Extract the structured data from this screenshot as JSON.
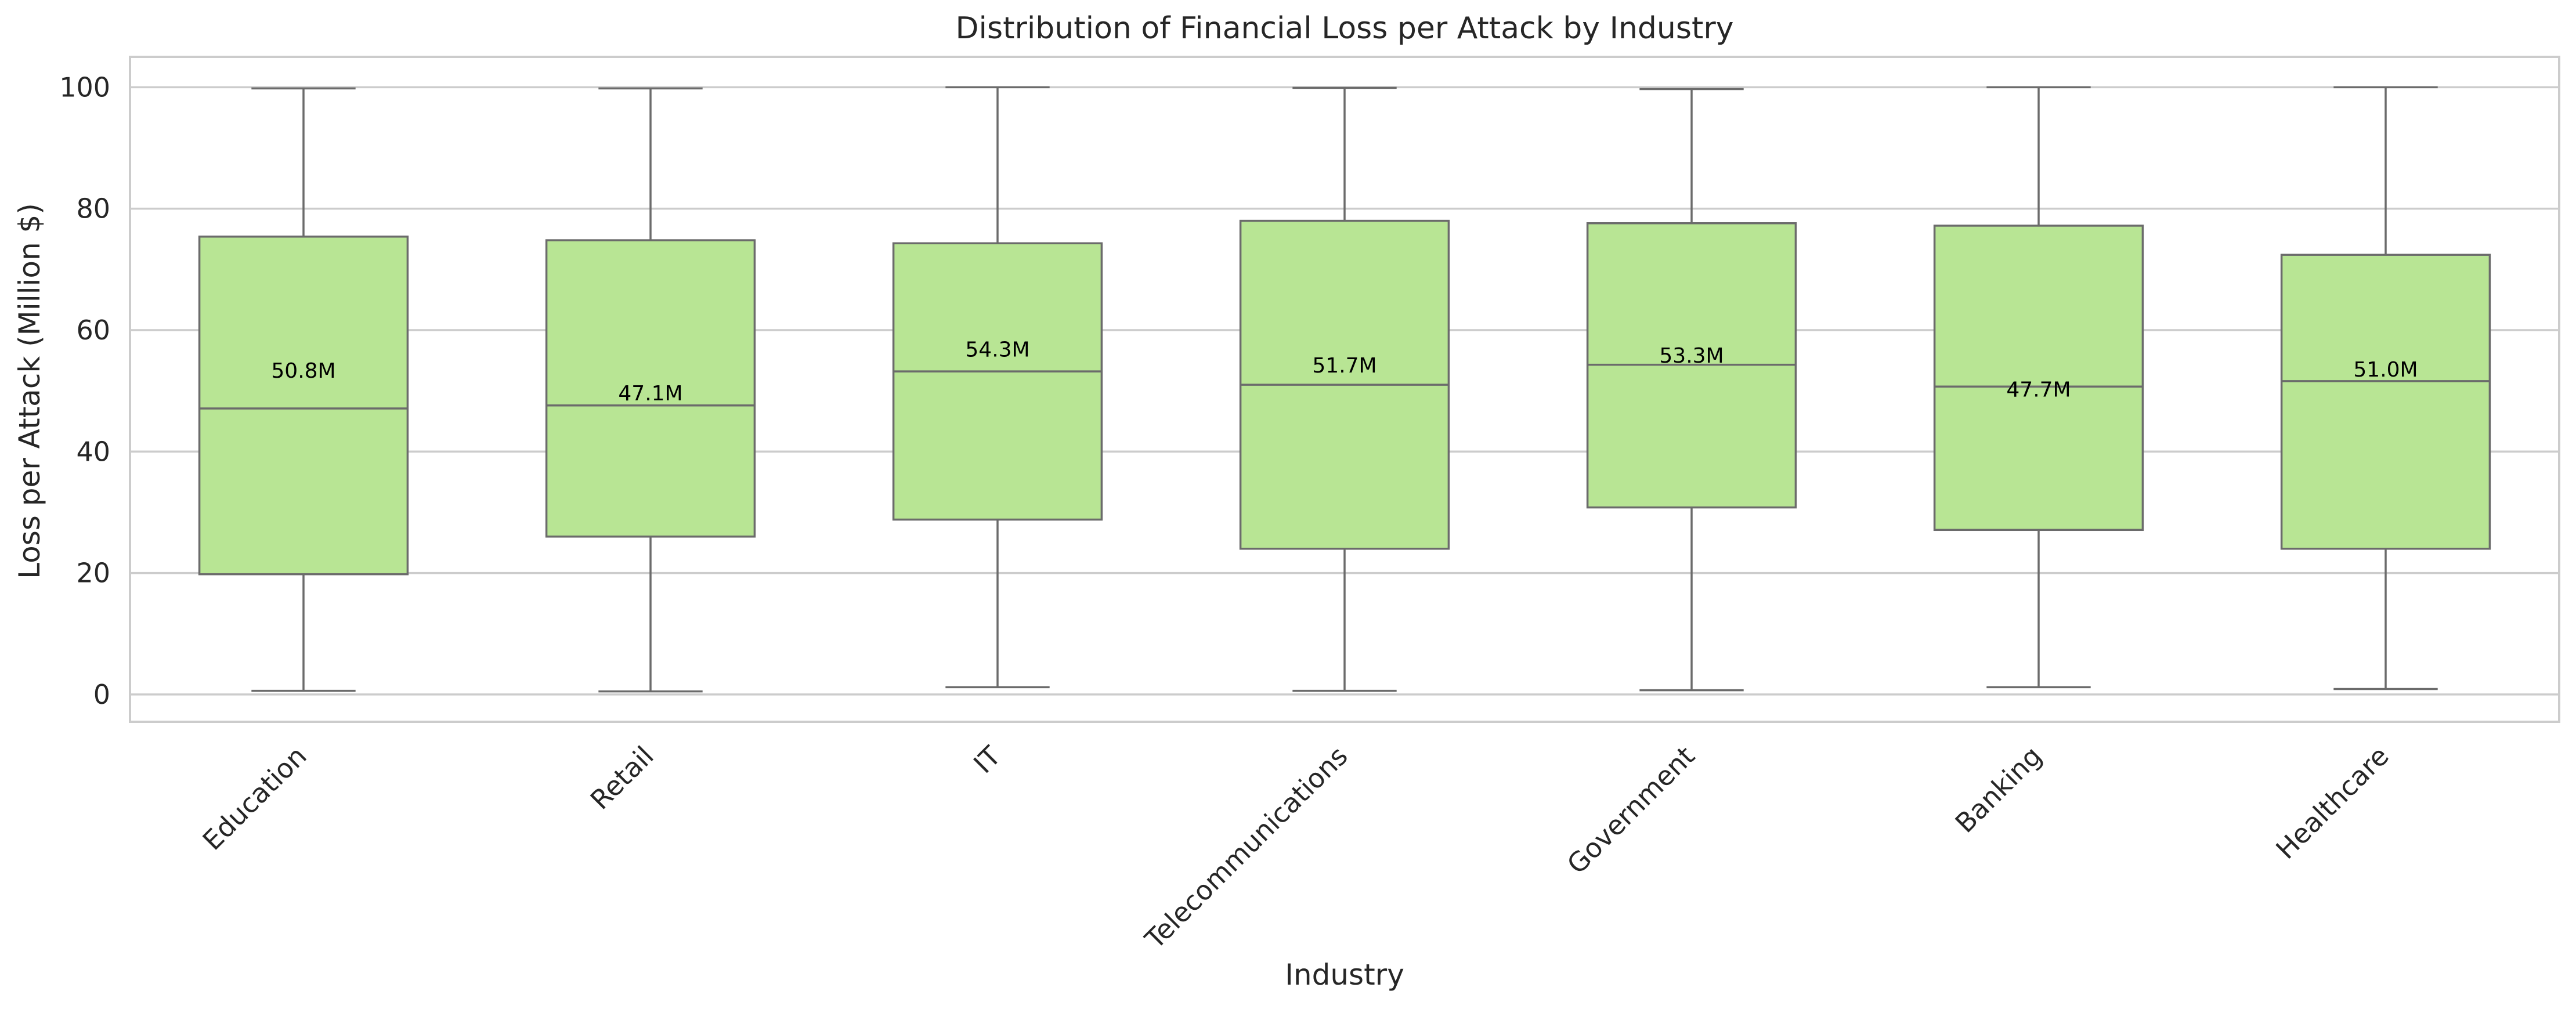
{
  "chart_data": {
    "type": "box",
    "title": "Distribution of Financial Loss per Attack by Industry",
    "xlabel": "Industry",
    "ylabel": "Loss per Attack (Million $)",
    "ylim": [
      -4.5,
      105
    ],
    "yticks": [
      0,
      20,
      40,
      60,
      80,
      100
    ],
    "grid": true,
    "categories": [
      "Education",
      "Retail",
      "IT",
      "Telecommunications",
      "Government",
      "Banking",
      "Healthcare"
    ],
    "boxes": [
      {
        "category": "Education",
        "min": 0.6,
        "q1": 19.8,
        "median": 47.1,
        "q3": 75.4,
        "max": 99.8,
        "mean": 50.8,
        "mean_label": "50.8M"
      },
      {
        "category": "Retail",
        "min": 0.5,
        "q1": 26.0,
        "median": 47.6,
        "q3": 74.8,
        "max": 99.8,
        "mean": 47.1,
        "mean_label": "47.1M"
      },
      {
        "category": "IT",
        "min": 1.2,
        "q1": 28.8,
        "median": 53.2,
        "q3": 74.3,
        "max": 100.0,
        "mean": 54.3,
        "mean_label": "54.3M"
      },
      {
        "category": "Telecommunications",
        "min": 0.6,
        "q1": 24.0,
        "median": 51.0,
        "q3": 78.0,
        "max": 99.9,
        "mean": 51.7,
        "mean_label": "51.7M"
      },
      {
        "category": "Government",
        "min": 0.7,
        "q1": 30.8,
        "median": 54.3,
        "q3": 77.6,
        "max": 99.7,
        "mean": 53.3,
        "mean_label": "53.3M"
      },
      {
        "category": "Banking",
        "min": 1.2,
        "q1": 27.1,
        "median": 50.7,
        "q3": 77.2,
        "max": 100.0,
        "mean": 47.7,
        "mean_label": "47.7M"
      },
      {
        "category": "Healthcare",
        "min": 0.9,
        "q1": 24.0,
        "median": 51.6,
        "q3": 72.4,
        "max": 100.0,
        "mean": 51.0,
        "mean_label": "51.0M"
      }
    ],
    "colors": {
      "box_fill": "#b8e594",
      "box_edge": "#6b6b6b",
      "grid": "#cccccc",
      "frame": "#cccccc",
      "text": "#262626"
    }
  }
}
